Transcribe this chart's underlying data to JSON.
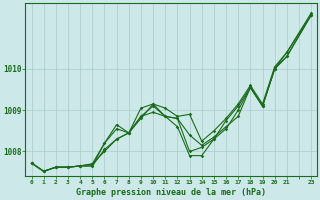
{
  "title": "Graphe pression niveau de la mer (hPa)",
  "background_color": "#cce8e8",
  "grid_color": "#aacccc",
  "line_color": "#1a6b1a",
  "xlim": [
    -0.5,
    23.5
  ],
  "ylim": [
    1007.4,
    1011.6
  ],
  "yticks": [
    1008,
    1009,
    1010
  ],
  "x_vals": [
    0,
    1,
    2,
    3,
    4,
    5,
    6,
    7,
    8,
    9,
    10,
    11,
    12,
    13,
    14,
    15,
    16,
    17,
    18,
    19,
    20,
    21,
    23
  ],
  "series": [
    [
      1007.72,
      1007.52,
      1007.62,
      1007.62,
      1007.65,
      1007.65,
      1008.05,
      1008.3,
      1008.45,
      1009.05,
      1009.15,
      1008.85,
      1008.8,
      1008.4,
      1008.15,
      1008.35,
      1008.6,
      1008.85,
      1009.55,
      1009.1,
      1010.0,
      1010.3,
      1011.3
    ],
    [
      1007.72,
      1007.52,
      1007.62,
      1007.62,
      1007.65,
      1007.65,
      1008.2,
      1008.65,
      1008.45,
      1008.85,
      1008.95,
      1008.85,
      1008.6,
      1007.9,
      1007.9,
      1008.3,
      1008.55,
      1009.0,
      1009.55,
      1009.1,
      1010.0,
      1010.3,
      1011.3
    ],
    [
      1007.72,
      1007.52,
      1007.62,
      1007.62,
      1007.65,
      1007.7,
      1008.2,
      1008.55,
      1008.45,
      1008.85,
      1009.1,
      1008.85,
      1008.8,
      1008.0,
      1008.1,
      1008.3,
      1008.75,
      1009.1,
      1009.55,
      1009.1,
      1010.0,
      1010.4,
      1011.3
    ],
    [
      1007.72,
      1007.52,
      1007.62,
      1007.62,
      1007.65,
      1007.7,
      1008.0,
      1008.3,
      1008.45,
      1008.8,
      1009.15,
      1009.05,
      1008.85,
      1008.9,
      1008.25,
      1008.5,
      1008.8,
      1009.15,
      1009.6,
      1009.15,
      1010.05,
      1010.4,
      1011.35
    ]
  ],
  "xticklabels": [
    "0",
    "1",
    "2",
    "3",
    "4",
    "5",
    "6",
    "7",
    "8",
    "9",
    "10",
    "11",
    "12",
    "13",
    "14",
    "15",
    "16",
    "17",
    "18",
    "19",
    "20",
    "21",
    "",
    "23"
  ],
  "xtick_positions": [
    0,
    1,
    2,
    3,
    4,
    5,
    6,
    7,
    8,
    9,
    10,
    11,
    12,
    13,
    14,
    15,
    16,
    17,
    18,
    19,
    20,
    21,
    22,
    23
  ]
}
